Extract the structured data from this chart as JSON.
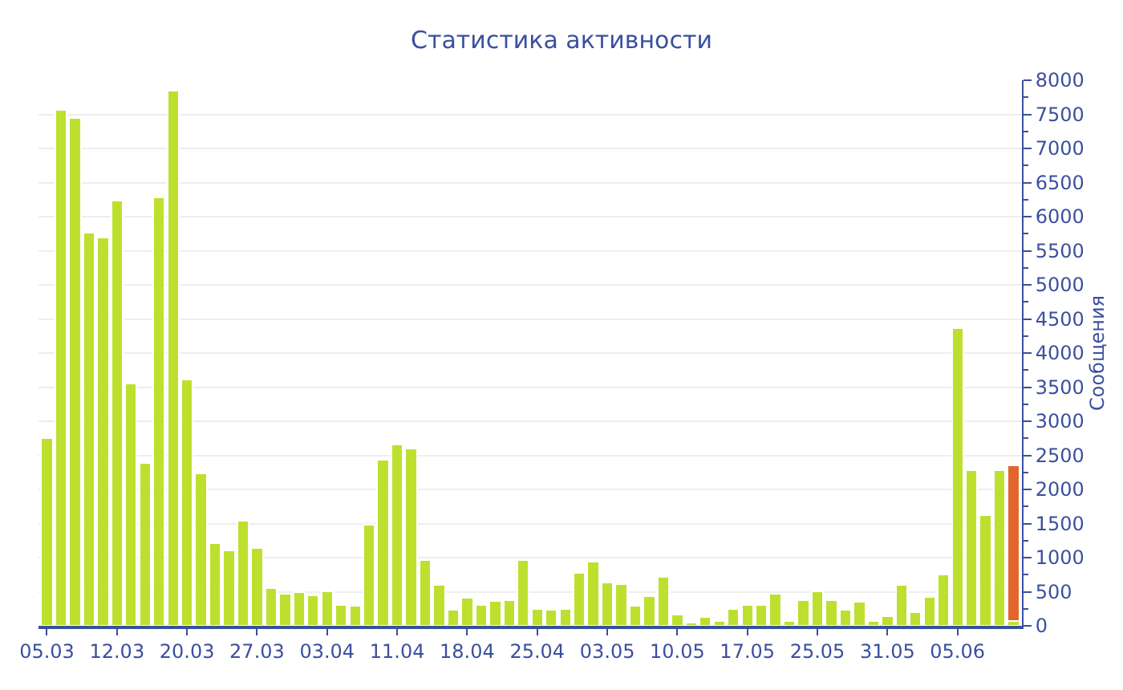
{
  "chart_data": {
    "type": "bar",
    "title": "Статистика активности",
    "ylabel": "Сообщения",
    "categories": [
      "05.03",
      null,
      null,
      null,
      null,
      "12.03",
      null,
      null,
      null,
      null,
      "20.03",
      null,
      null,
      null,
      null,
      "27.03",
      null,
      null,
      null,
      null,
      "03.04",
      null,
      null,
      null,
      null,
      "11.04",
      null,
      null,
      null,
      null,
      "18.04",
      null,
      null,
      null,
      null,
      "25.04",
      null,
      null,
      null,
      null,
      "03.05",
      null,
      null,
      null,
      null,
      "10.05",
      null,
      null,
      null,
      null,
      "17.05",
      null,
      null,
      null,
      null,
      "25.05",
      null,
      null,
      null,
      null,
      "31.05",
      null,
      null,
      null,
      null,
      "05.06",
      null,
      null,
      null,
      null
    ],
    "stacked": true,
    "series": [
      {
        "color": "#bde02f",
        "values": [
          2750,
          7570,
          7450,
          5770,
          5690,
          6240,
          3550,
          2390,
          6280,
          7850,
          3610,
          2230,
          1210,
          1110,
          1540,
          1140,
          550,
          470,
          490,
          450,
          510,
          310,
          300,
          1480,
          2440,
          2660,
          2600,
          960,
          600,
          240,
          410,
          310,
          370,
          380,
          970,
          250,
          240,
          250,
          780,
          940,
          630,
          610,
          290,
          440,
          720,
          170,
          50,
          130,
          70,
          250,
          310,
          310,
          470,
          70,
          380,
          510,
          380,
          240,
          350,
          70,
          140,
          600,
          200,
          420,
          750,
          4370,
          2280,
          1620,
          2280,
          70
        ]
      },
      {
        "color": "#e2662c",
        "values": [
          null,
          null,
          null,
          null,
          null,
          null,
          null,
          null,
          null,
          null,
          null,
          null,
          null,
          null,
          null,
          null,
          null,
          null,
          null,
          null,
          null,
          null,
          null,
          null,
          null,
          null,
          null,
          null,
          null,
          null,
          null,
          null,
          null,
          null,
          null,
          null,
          null,
          null,
          null,
          null,
          null,
          null,
          null,
          null,
          null,
          null,
          null,
          null,
          null,
          null,
          null,
          null,
          null,
          null,
          null,
          null,
          null,
          null,
          null,
          null,
          null,
          null,
          null,
          null,
          null,
          null,
          null,
          null,
          null,
          2280
        ]
      }
    ],
    "ylim": [
      0,
      8000
    ],
    "yticks": [
      0,
      500,
      1000,
      1500,
      2000,
      2500,
      3000,
      3500,
      4000,
      4500,
      5000,
      5500,
      6000,
      6500,
      7000,
      7500,
      8000
    ],
    "grid": "y"
  }
}
